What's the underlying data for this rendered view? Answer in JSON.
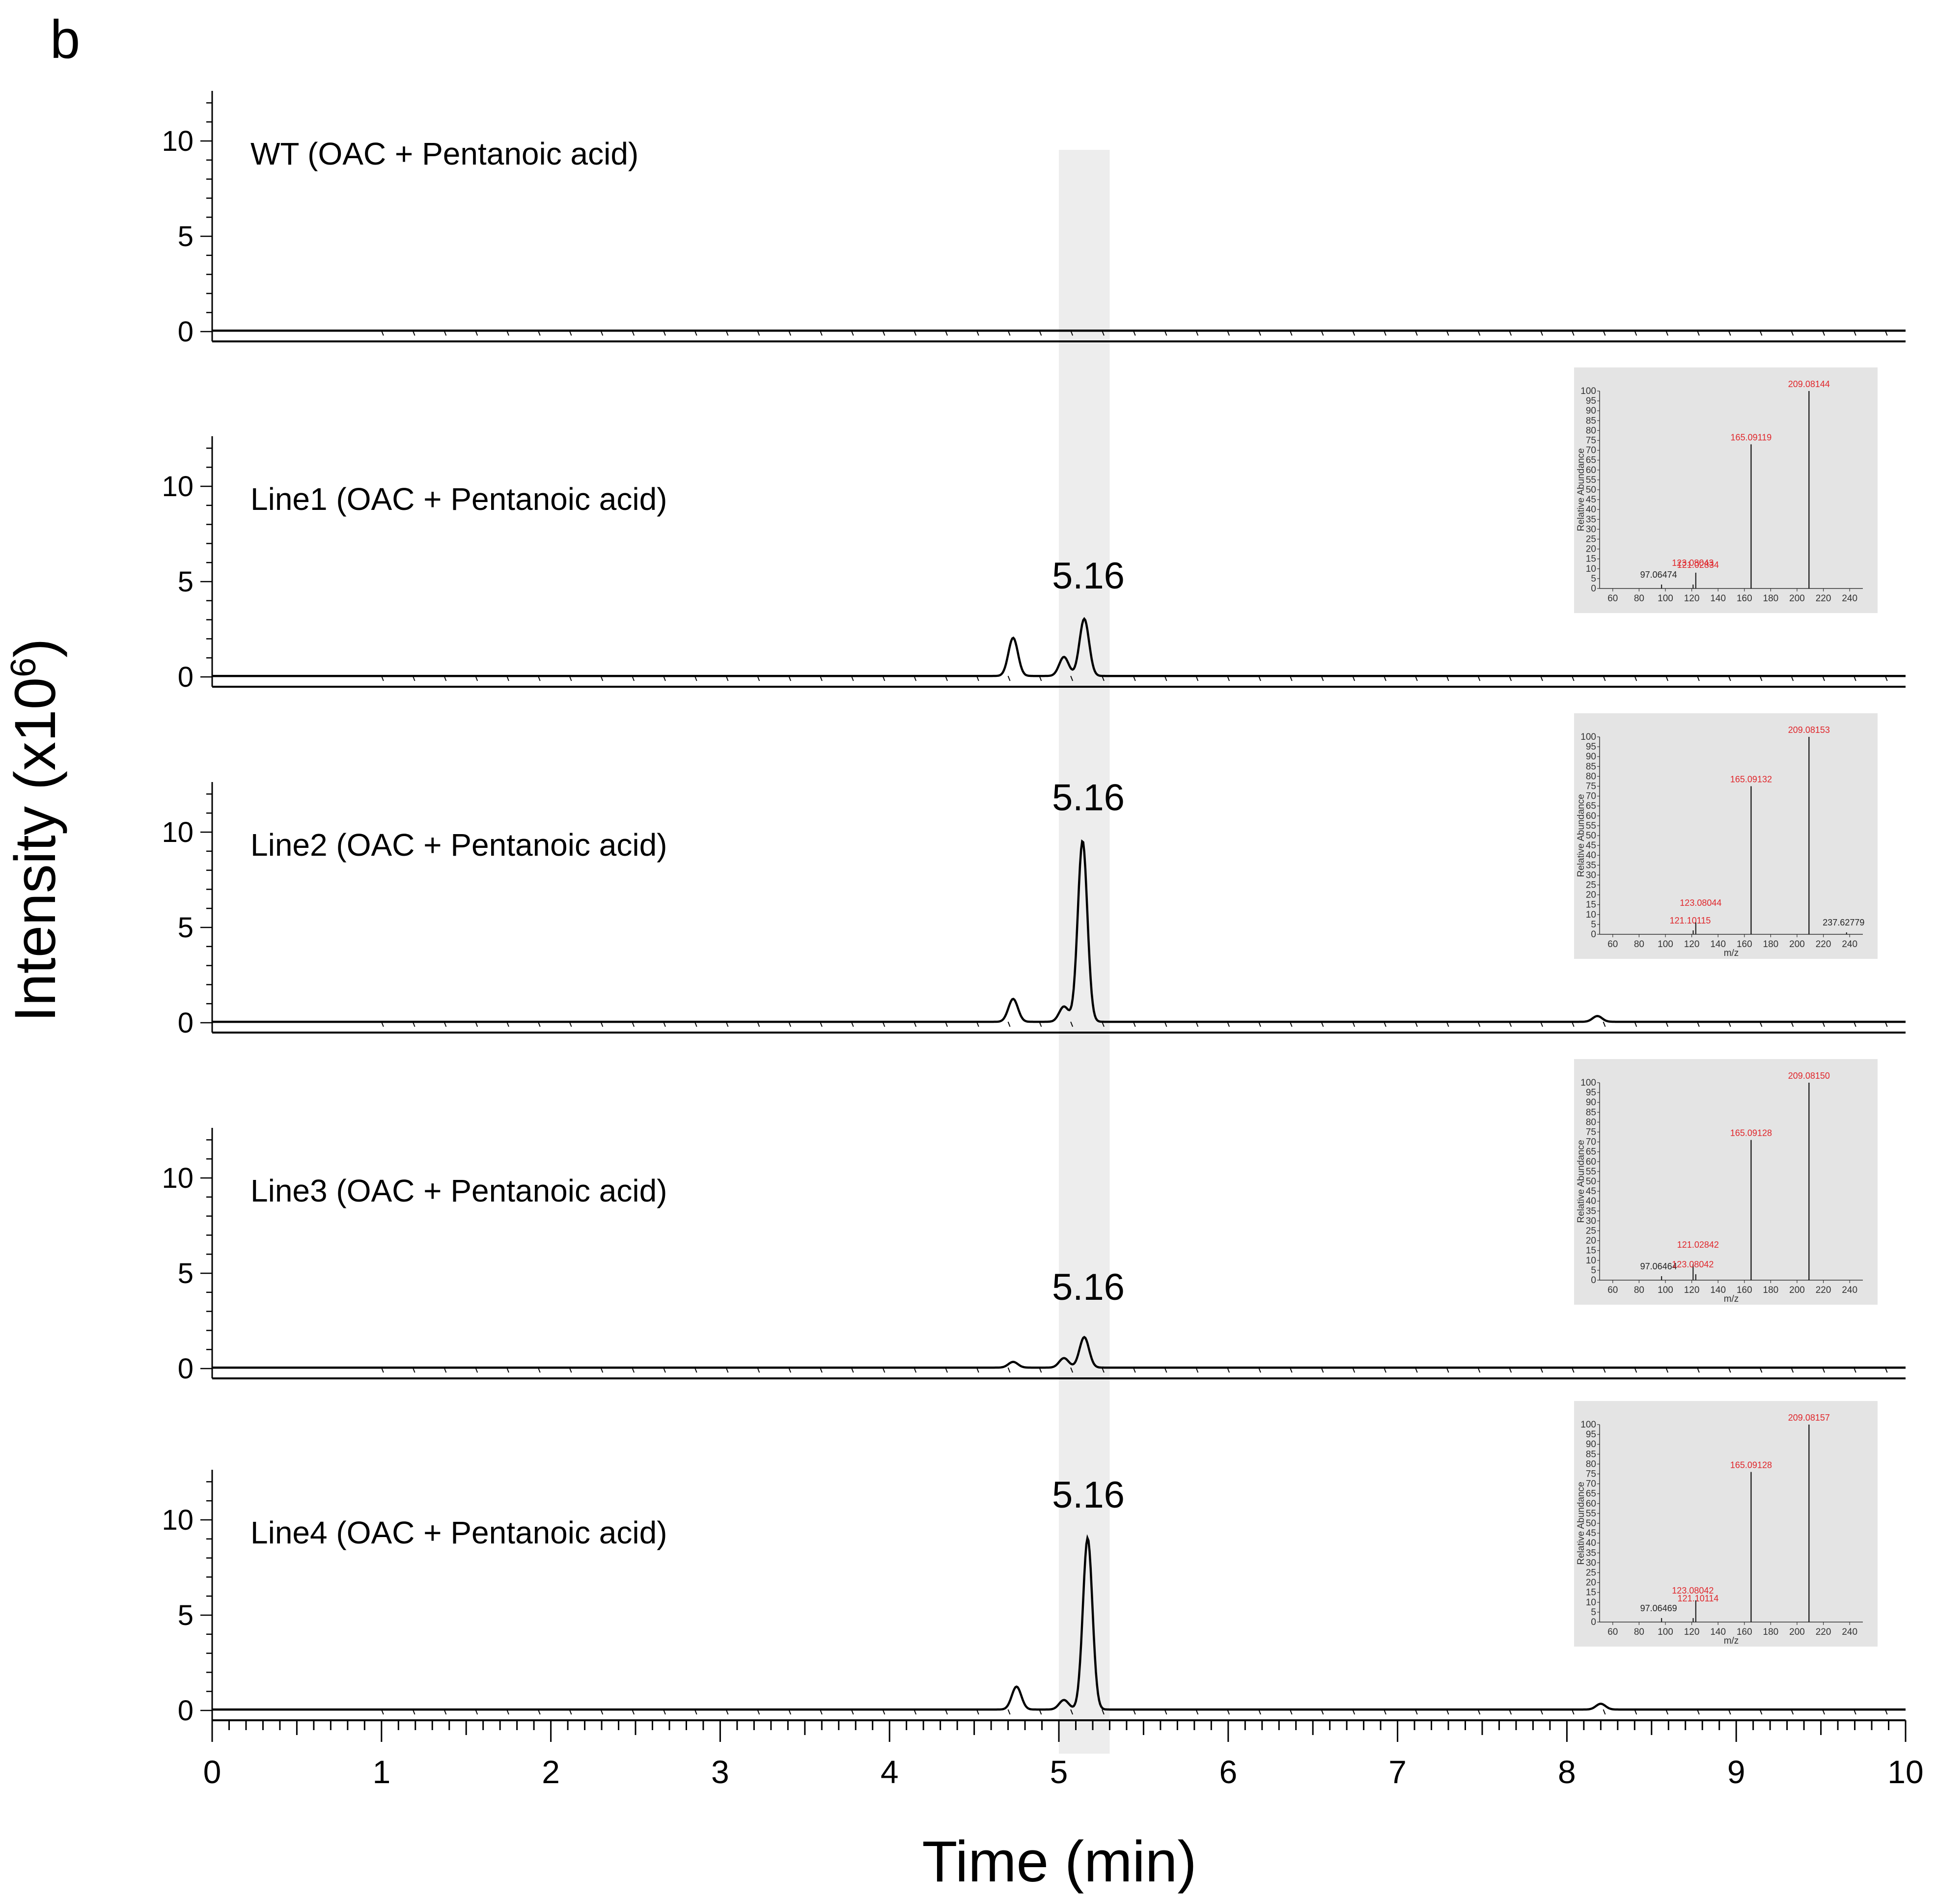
{
  "figure": {
    "panel_letter": "b",
    "x_axis_title": "Time (min)",
    "y_axis_title": "Intensity (x10",
    "y_axis_title_exp": "6",
    "y_axis_title_close": ")"
  },
  "chart_data": {
    "type": "line",
    "xlim": [
      0,
      10
    ],
    "x_ticks": [
      0,
      1,
      2,
      3,
      4,
      5,
      6,
      7,
      8,
      9,
      10
    ],
    "x_tick_labels": [
      "0",
      "1",
      "2",
      "3",
      "4",
      "5",
      "6",
      "7",
      "8",
      "9",
      "10"
    ],
    "ylim": [
      0,
      12
    ],
    "y_ticks": [
      0,
      5,
      10
    ],
    "y_tick_labels": [
      "0",
      "5",
      "10"
    ],
    "highlight_x": [
      5.0,
      5.3
    ],
    "panels": [
      {
        "title": "WT (OAC + Pentanoic acid)",
        "peaks": [],
        "peak_label": "",
        "inset": null
      },
      {
        "title": "Line1 (OAC + Pentanoic acid)",
        "peaks": [
          {
            "x": 4.73,
            "y": 2.0
          },
          {
            "x": 5.03,
            "y": 1.0
          },
          {
            "x": 5.15,
            "y": 3.0
          }
        ],
        "peak_label": "5.16",
        "inset": {
          "x_ticks": [
            "60",
            "80",
            "100",
            "120",
            "140",
            "160",
            "180",
            "200",
            "220",
            "240"
          ],
          "y_ticks": [
            "0",
            "5",
            "10",
            "15",
            "20",
            "25",
            "30",
            "35",
            "40",
            "45",
            "50",
            "55",
            "60",
            "65",
            "70",
            "75",
            "80",
            "85",
            "90",
            "95",
            "100"
          ],
          "ylabel": "Relative Abundance",
          "xlabel": "",
          "peaks": [
            {
              "mz": 97.06474,
              "rel": 2,
              "label": "97.06474",
              "red": false
            },
            {
              "mz": 121.02834,
              "rel": 2,
              "label": "121.02834",
              "red": true
            },
            {
              "mz": 123.08043,
              "rel": 8,
              "label": "123.08043",
              "red": true
            },
            {
              "mz": 165.09119,
              "rel": 73,
              "label": "165.09119",
              "red": true
            },
            {
              "mz": 209.08144,
              "rel": 100,
              "label": "209.08144",
              "red": true
            }
          ]
        }
      },
      {
        "title": "Line2 (OAC + Pentanoic acid)",
        "peaks": [
          {
            "x": 4.73,
            "y": 1.2
          },
          {
            "x": 5.03,
            "y": 0.8
          },
          {
            "x": 5.14,
            "y": 9.5
          },
          {
            "x": 8.18,
            "y": 0.3
          }
        ],
        "peak_label": "5.16",
        "inset": {
          "x_ticks": [
            "60",
            "80",
            "100",
            "120",
            "140",
            "160",
            "180",
            "200",
            "220",
            "240"
          ],
          "y_ticks": [
            "0",
            "5",
            "10",
            "15",
            "20",
            "25",
            "30",
            "35",
            "40",
            "45",
            "50",
            "55",
            "60",
            "65",
            "70",
            "75",
            "80",
            "85",
            "90",
            "95",
            "100"
          ],
          "ylabel": "Relative Abundance",
          "xlabel": "m/z",
          "peaks": [
            {
              "mz": 121.10115,
              "rel": 2,
              "label": "121.10115",
              "red": true
            },
            {
              "mz": 123.08044,
              "rel": 6,
              "label": "123.08044",
              "red": true
            },
            {
              "mz": 165.09132,
              "rel": 75,
              "label": "165.09132",
              "red": true
            },
            {
              "mz": 209.08153,
              "rel": 100,
              "label": "209.08153",
              "red": true
            },
            {
              "mz": 237.62779,
              "rel": 1,
              "label": "237.62779",
              "red": false
            }
          ]
        }
      },
      {
        "title": "Line3 (OAC + Pentanoic acid)",
        "peaks": [
          {
            "x": 4.73,
            "y": 0.3
          },
          {
            "x": 5.03,
            "y": 0.5
          },
          {
            "x": 5.15,
            "y": 1.6
          }
        ],
        "peak_label": "5.16",
        "inset": {
          "x_ticks": [
            "60",
            "80",
            "100",
            "120",
            "140",
            "160",
            "180",
            "200",
            "220",
            "240"
          ],
          "y_ticks": [
            "0",
            "5",
            "10",
            "15",
            "20",
            "25",
            "30",
            "35",
            "40",
            "45",
            "50",
            "55",
            "60",
            "65",
            "70",
            "75",
            "80",
            "85",
            "90",
            "95",
            "100"
          ],
          "ylabel": "Relative Abundance",
          "xlabel": "m/z",
          "peaks": [
            {
              "mz": 97.06464,
              "rel": 2,
              "label": "97.06464",
              "red": false
            },
            {
              "mz": 121.02842,
              "rel": 8,
              "label": "121.02842",
              "red": true
            },
            {
              "mz": 123.08042,
              "rel": 3,
              "label": "123.08042",
              "red": true
            },
            {
              "mz": 165.09128,
              "rel": 71,
              "label": "165.09128",
              "red": true
            },
            {
              "mz": 209.0815,
              "rel": 100,
              "label": "209.08150",
              "red": true
            }
          ]
        }
      },
      {
        "title": "Line4 (OAC + Pentanoic acid)",
        "peaks": [
          {
            "x": 4.75,
            "y": 1.2
          },
          {
            "x": 5.03,
            "y": 0.5
          },
          {
            "x": 5.17,
            "y": 9.0
          },
          {
            "x": 8.2,
            "y": 0.3
          }
        ],
        "peak_label": "5.16",
        "inset": {
          "x_ticks": [
            "60",
            "80",
            "100",
            "120",
            "140",
            "160",
            "180",
            "200",
            "220",
            "240"
          ],
          "y_ticks": [
            "0",
            "5",
            "10",
            "15",
            "20",
            "25",
            "30",
            "35",
            "40",
            "45",
            "50",
            "55",
            "60",
            "65",
            "70",
            "75",
            "80",
            "85",
            "90",
            "95",
            "100"
          ],
          "ylabel": "Relative Abundance",
          "xlabel": "m/z",
          "peaks": [
            {
              "mz": 97.06469,
              "rel": 2,
              "label": "97.06469",
              "red": false
            },
            {
              "mz": 121.10114,
              "rel": 2,
              "label": "121.10114",
              "red": true
            },
            {
              "mz": 123.08042,
              "rel": 11,
              "label": "123.08042",
              "red": true
            },
            {
              "mz": 165.09128,
              "rel": 76,
              "label": "165.09128",
              "red": true
            },
            {
              "mz": 209.08157,
              "rel": 100,
              "label": "209.08157",
              "red": true
            }
          ]
        }
      }
    ]
  }
}
